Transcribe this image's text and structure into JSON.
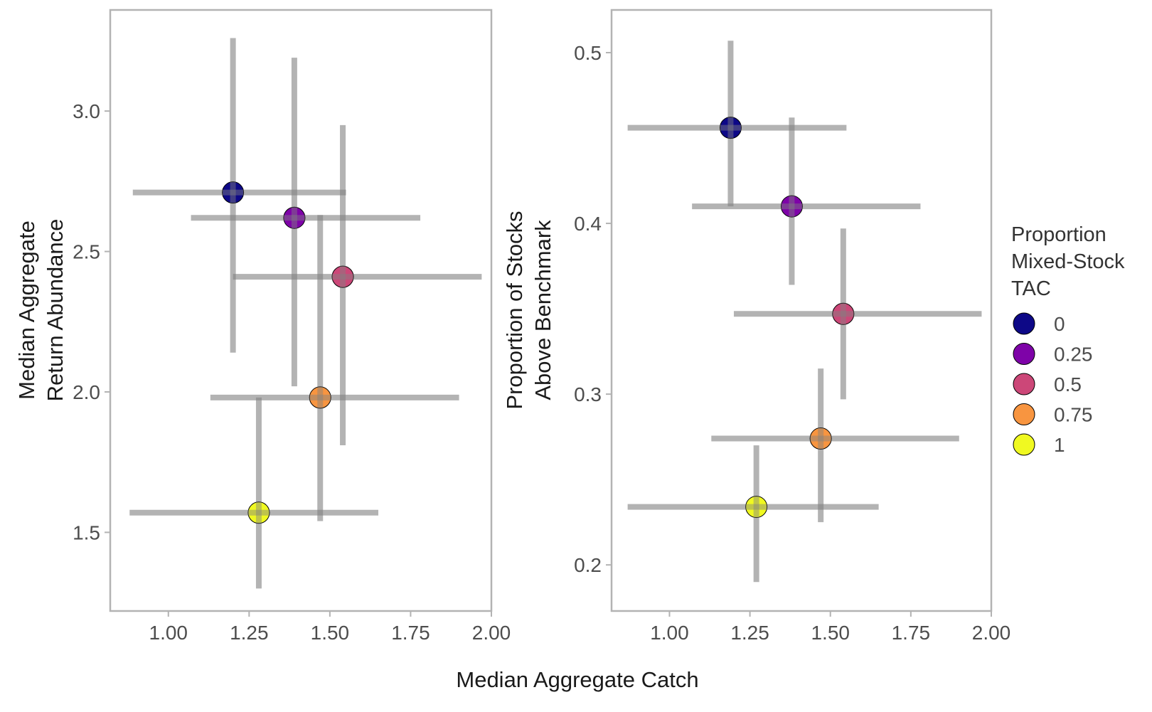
{
  "figure": {
    "shared_xlabel": "Median Aggregate Catch",
    "legend": {
      "title_lines": [
        "Proportion",
        "Mixed-Stock",
        "TAC"
      ],
      "placement": "right",
      "entries": [
        {
          "label": "0",
          "color": "#0d0887"
        },
        {
          "label": "0.25",
          "color": "#7e03a8"
        },
        {
          "label": "0.5",
          "color": "#cc4778"
        },
        {
          "label": "0.75",
          "color": "#f89540"
        },
        {
          "label": "1",
          "color": "#f0f921"
        }
      ]
    }
  },
  "chart_data": [
    {
      "type": "scatter",
      "xlabel": "Median Aggregate Catch",
      "ylabel_lines": [
        "Median Aggregate",
        "Return Abundance"
      ],
      "xlim": [
        0.82,
        2.0
      ],
      "ylim": [
        1.22,
        3.36
      ],
      "xticks": [
        1.0,
        1.25,
        1.5,
        1.75,
        2.0
      ],
      "xtick_labels": [
        "1.00",
        "1.25",
        "1.50",
        "1.75",
        "2.00"
      ],
      "yticks": [
        1.5,
        2.0,
        2.5,
        3.0
      ],
      "ytick_labels": [
        "1.5",
        "2.0",
        "2.5",
        "3.0"
      ],
      "grid": false,
      "errorbar_color": "#808080",
      "points": [
        {
          "group": "0",
          "x": 1.2,
          "y": 2.71,
          "x_low": 0.89,
          "x_high": 1.55,
          "y_low": 2.14,
          "y_high": 3.26
        },
        {
          "group": "0.25",
          "x": 1.39,
          "y": 2.62,
          "x_low": 1.07,
          "x_high": 1.78,
          "y_low": 2.02,
          "y_high": 3.19
        },
        {
          "group": "0.5",
          "x": 1.54,
          "y": 2.41,
          "x_low": 1.2,
          "x_high": 1.97,
          "y_low": 1.81,
          "y_high": 2.95
        },
        {
          "group": "0.75",
          "x": 1.47,
          "y": 1.98,
          "x_low": 1.13,
          "x_high": 1.9,
          "y_low": 1.54,
          "y_high": 2.63
        },
        {
          "group": "1",
          "x": 1.28,
          "y": 1.57,
          "x_low": 0.88,
          "x_high": 1.65,
          "y_low": 1.3,
          "y_high": 1.98
        }
      ]
    },
    {
      "type": "scatter",
      "xlabel": "Median Aggregate Catch",
      "ylabel_lines": [
        "Proportion of Stocks",
        "Above Benchmark"
      ],
      "xlim": [
        0.82,
        2.0
      ],
      "ylim": [
        0.173,
        0.525
      ],
      "xticks": [
        1.0,
        1.25,
        1.5,
        1.75,
        2.0
      ],
      "xtick_labels": [
        "1.00",
        "1.25",
        "1.50",
        "1.75",
        "2.00"
      ],
      "yticks": [
        0.2,
        0.3,
        0.4,
        0.5
      ],
      "ytick_labels": [
        "0.2",
        "0.3",
        "0.4",
        "0.5"
      ],
      "grid": false,
      "errorbar_color": "#808080",
      "points": [
        {
          "group": "0",
          "x": 1.19,
          "y": 0.456,
          "x_low": 0.87,
          "x_high": 1.55,
          "y_low": 0.41,
          "y_high": 0.507
        },
        {
          "group": "0.25",
          "x": 1.38,
          "y": 0.41,
          "x_low": 1.07,
          "x_high": 1.78,
          "y_low": 0.364,
          "y_high": 0.462
        },
        {
          "group": "0.5",
          "x": 1.54,
          "y": 0.347,
          "x_low": 1.2,
          "x_high": 1.97,
          "y_low": 0.297,
          "y_high": 0.397
        },
        {
          "group": "0.75",
          "x": 1.47,
          "y": 0.274,
          "x_low": 1.13,
          "x_high": 1.9,
          "y_low": 0.225,
          "y_high": 0.315
        },
        {
          "group": "1",
          "x": 1.27,
          "y": 0.234,
          "x_low": 0.87,
          "x_high": 1.65,
          "y_low": 0.19,
          "y_high": 0.27
        }
      ]
    }
  ]
}
